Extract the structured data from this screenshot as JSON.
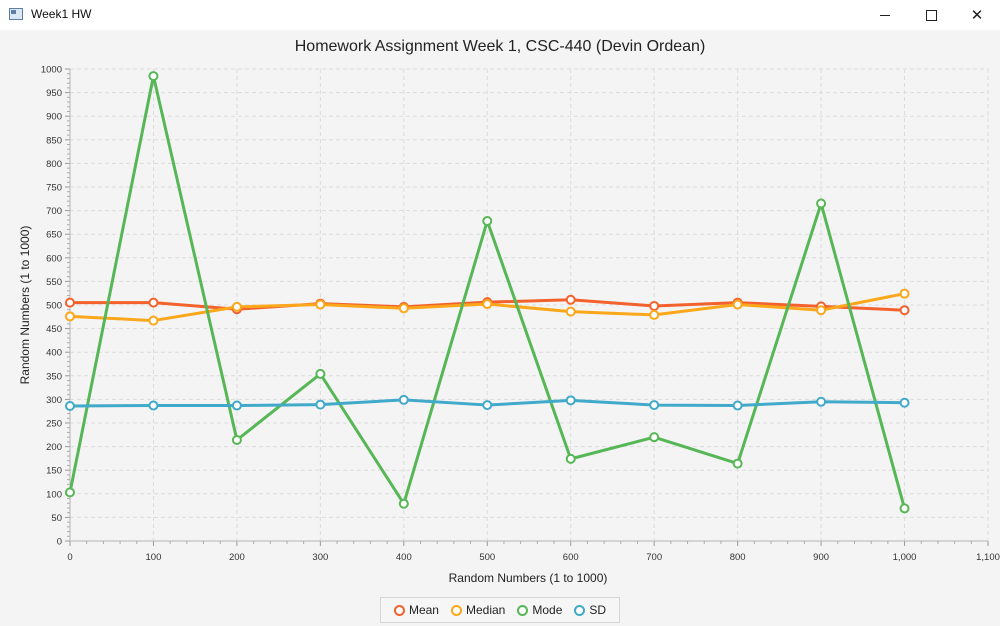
{
  "window": {
    "title": "Week1 HW"
  },
  "colors": {
    "mean": "#f3622d",
    "median": "#fba71b",
    "mode": "#57b757",
    "sd": "#41a9c9"
  },
  "chart_data": {
    "type": "line",
    "title": "Homework Assignment Week 1, CSC-440 (Devin Ordean)",
    "xlabel": "Random Numbers (1 to 1000)",
    "ylabel": "Random Numbers (1 to 1000)",
    "xlim": [
      0,
      1100
    ],
    "ylim": [
      0,
      1000
    ],
    "x_ticks": [
      "0",
      "100",
      "200",
      "300",
      "400",
      "500",
      "600",
      "700",
      "800",
      "900",
      "1,000",
      "1,100"
    ],
    "y_ticks": [
      "0",
      "50",
      "100",
      "150",
      "200",
      "250",
      "300",
      "350",
      "400",
      "450",
      "500",
      "550",
      "600",
      "650",
      "700",
      "750",
      "800",
      "850",
      "900",
      "950",
      "1000"
    ],
    "grid": true,
    "legend_position": "bottom",
    "x": [
      0,
      100,
      200,
      300,
      400,
      500,
      600,
      700,
      800,
      900,
      1000
    ],
    "series": [
      {
        "name": "Mean",
        "color": "#f3622d",
        "values": [
          505,
          505,
          491,
          503,
          496,
          506,
          511,
          498,
          505,
          497,
          489
        ]
      },
      {
        "name": "Median",
        "color": "#fba71b",
        "values": [
          476,
          467,
          496,
          501,
          493,
          502,
          486,
          479,
          501,
          489,
          524
        ]
      },
      {
        "name": "Mode",
        "color": "#57b757",
        "values": [
          103,
          985,
          214,
          354,
          79,
          678,
          174,
          220,
          164,
          715,
          69
        ]
      },
      {
        "name": "SD",
        "color": "#41a9c9",
        "values": [
          286,
          287,
          287,
          289,
          299,
          288,
          298,
          288,
          287,
          295,
          293
        ]
      }
    ]
  }
}
